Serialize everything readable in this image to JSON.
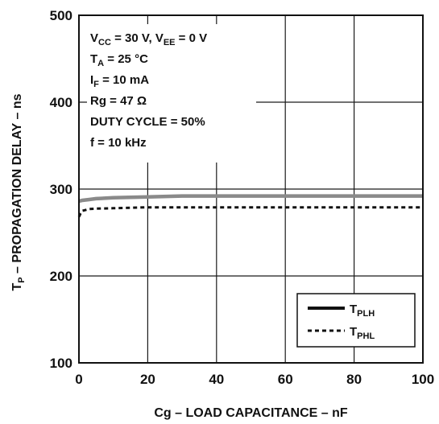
{
  "chart_data": {
    "type": "line",
    "title": "",
    "xlabel": "Cg – LOAD CAPACITANCE – nF",
    "ylabel": {
      "main": "T",
      "sub": "P",
      "rest": " – PROPAGATION DELAY – ns"
    },
    "xlim": [
      0,
      100
    ],
    "ylim": [
      100,
      500
    ],
    "x_ticks": [
      "0",
      "20",
      "40",
      "60",
      "80",
      "100"
    ],
    "y_ticks": [
      "100",
      "200",
      "300",
      "400",
      "500"
    ],
    "grid": true,
    "legend_position": "bottom-right",
    "conditions": [
      {
        "parts": [
          {
            "t": "V"
          },
          {
            "t": "CC",
            "sub": true
          },
          {
            "t": " = 30 V, V"
          },
          {
            "t": "EE",
            "sub": true
          },
          {
            "t": " = 0 V"
          }
        ]
      },
      {
        "parts": [
          {
            "t": "T"
          },
          {
            "t": "A",
            "sub": true
          },
          {
            "t": " = 25 °C"
          }
        ]
      },
      {
        "parts": [
          {
            "t": "I"
          },
          {
            "t": "F",
            "sub": true
          },
          {
            "t": " = 10 mA"
          }
        ]
      },
      {
        "parts": [
          {
            "t": "Rg = 47 Ω"
          }
        ]
      },
      {
        "parts": [
          {
            "t": "DUTY CYCLE = 50%"
          }
        ]
      },
      {
        "parts": [
          {
            "t": "f = 10 kHz"
          }
        ]
      }
    ],
    "series": [
      {
        "name": {
          "main": "T",
          "sub": "PLH"
        },
        "style": "solid",
        "color": "#8a8a8a",
        "x": [
          0,
          1,
          3,
          5,
          10,
          20,
          30,
          40,
          50,
          60,
          70,
          80,
          90,
          100
        ],
        "y": [
          286,
          287,
          288,
          289,
          290,
          291,
          292,
          292,
          292,
          292,
          292,
          292,
          292,
          292
        ]
      },
      {
        "name": {
          "main": "T",
          "sub": "PHL"
        },
        "style": "dotted",
        "color": "#111111",
        "x": [
          0,
          0.5,
          1,
          2,
          3,
          5,
          10,
          20,
          30,
          40,
          50,
          60,
          70,
          80,
          90,
          100
        ],
        "y": [
          268,
          272,
          275,
          276,
          277,
          277.5,
          278,
          279,
          279,
          279,
          279,
          279,
          279,
          279,
          279,
          279
        ]
      }
    ]
  }
}
